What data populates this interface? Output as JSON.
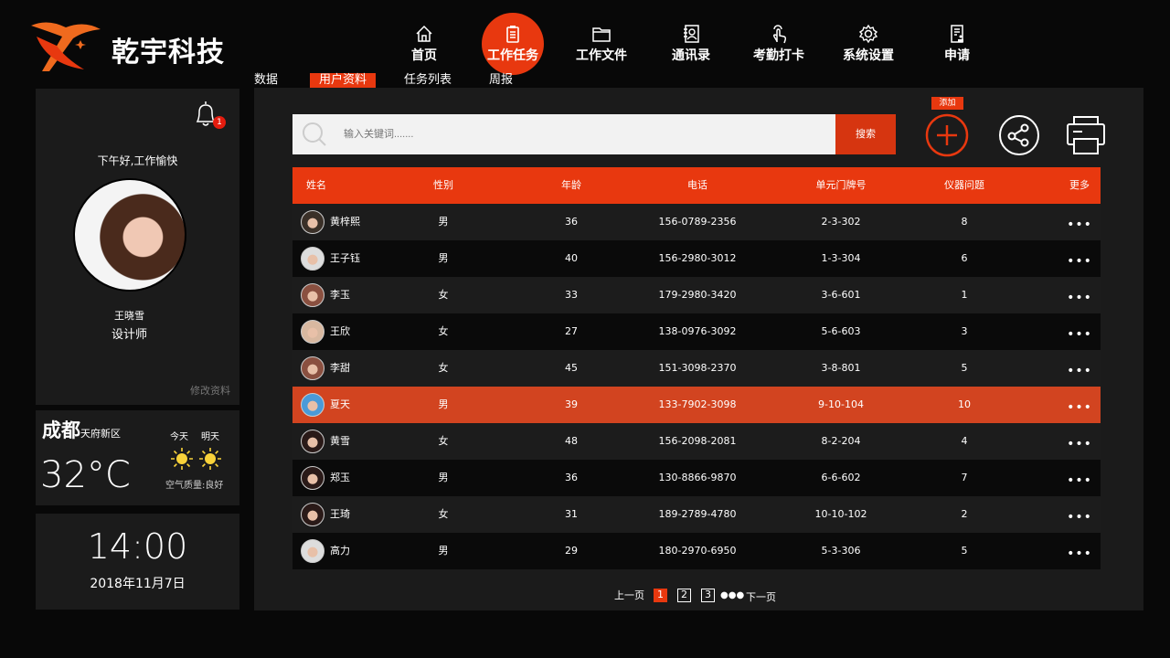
{
  "brand": {
    "name": "乾宇科技",
    "accent": "#e8380f"
  },
  "nav": [
    {
      "label": "首页",
      "icon": "home-icon"
    },
    {
      "label": "工作任务",
      "icon": "clipboard-icon",
      "active": true
    },
    {
      "label": "工作文件",
      "icon": "folder-icon"
    },
    {
      "label": "通讯录",
      "icon": "contacts-icon"
    },
    {
      "label": "考勤打卡",
      "icon": "hand-tap-icon"
    },
    {
      "label": "系统设置",
      "icon": "gear-icon"
    },
    {
      "label": "申请",
      "icon": "application-icon"
    }
  ],
  "subnav": [
    {
      "label": "数据"
    },
    {
      "label": "用户资料",
      "active": true
    },
    {
      "label": "任务列表"
    },
    {
      "label": "周报"
    }
  ],
  "profile": {
    "notifications": "1",
    "greeting": "下午好,工作愉快",
    "name": "王晓雪",
    "title": "设计师",
    "edit": "修改资料"
  },
  "weather": {
    "city": "成都",
    "district": "天府新区",
    "temp": "32°C",
    "today": "今天",
    "tomorrow": "明天",
    "air": "空气质量:良好"
  },
  "clock": {
    "time": "14:00",
    "date": "2018年11月7日"
  },
  "search": {
    "placeholder": "输入关键词.......",
    "button": "搜索"
  },
  "actions": {
    "add_tooltip": "添加"
  },
  "table": {
    "headers": [
      "姓名",
      "性别",
      "年龄",
      "电话",
      "单元门牌号",
      "仪器问题",
      "更多"
    ],
    "rows": [
      [
        "黄梓熙",
        "男",
        "36",
        "156-0789-2356",
        "2-3-302",
        "8"
      ],
      [
        "王子钰",
        "男",
        "40",
        "156-2980-3012",
        "1-3-304",
        "6"
      ],
      [
        "李玉",
        "女",
        "33",
        "179-2980-3420",
        "3-6-601",
        "1"
      ],
      [
        "王欣",
        "女",
        "27",
        "138-0976-3092",
        "5-6-603",
        "3"
      ],
      [
        "李甜",
        "女",
        "45",
        "151-3098-2370",
        "3-8-801",
        "5"
      ],
      [
        "夏天",
        "男",
        "39",
        "133-7902-3098",
        "9-10-104",
        "10"
      ],
      [
        "黄雪",
        "女",
        "48",
        "156-2098-2081",
        "8-2-204",
        "4"
      ],
      [
        "郑玉",
        "男",
        "36",
        "130-8866-9870",
        "6-6-602",
        "7"
      ],
      [
        "王琦",
        "女",
        "31",
        "189-2789-4780",
        "10-10-102",
        "2"
      ],
      [
        "高力",
        "男",
        "29",
        "180-2970-6950",
        "5-3-306",
        "5"
      ]
    ],
    "selected_row": 5,
    "more": "•••"
  },
  "pagination": {
    "prev": "上一页",
    "pages": [
      "1",
      "2",
      "3"
    ],
    "current": "1",
    "ellipsis": "●●●",
    "next": "下一页"
  }
}
